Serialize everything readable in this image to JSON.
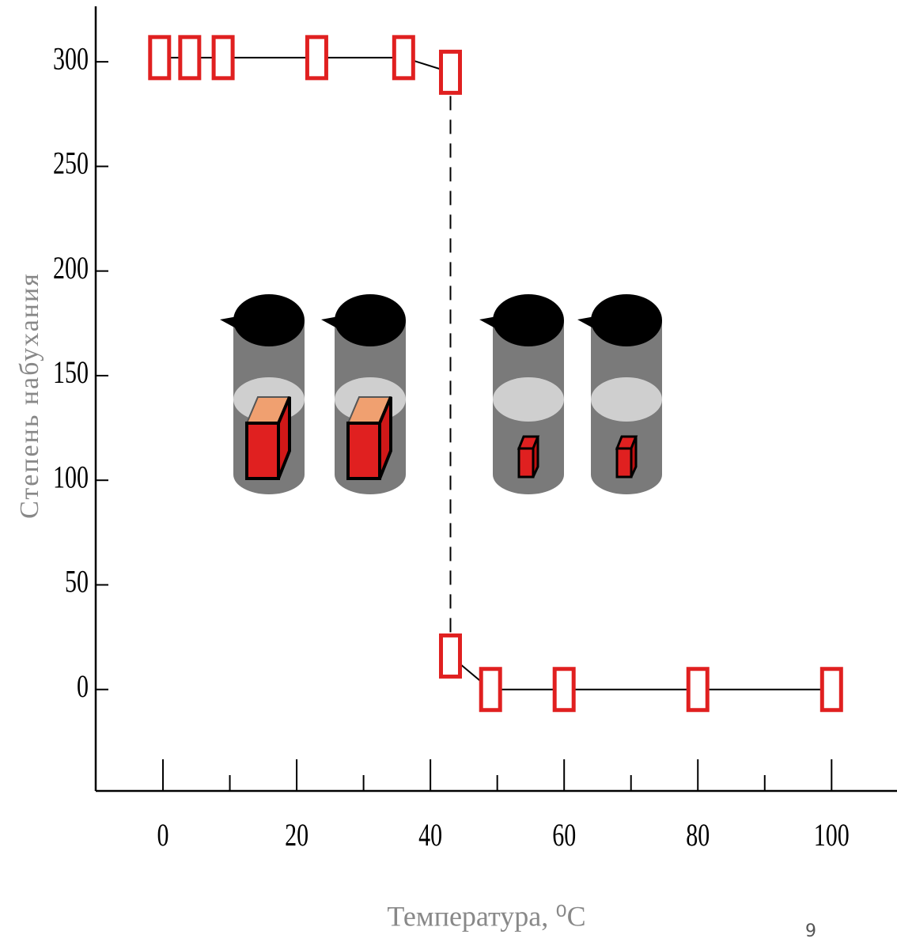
{
  "chart_data": {
    "type": "line",
    "x_label": "Температура, ⁰C",
    "y_label": "Степень набухания",
    "page_number": "9",
    "x": [
      -0.5,
      4,
      9,
      23,
      36,
      43,
      43,
      49,
      60,
      80,
      100
    ],
    "values": [
      302,
      302,
      302,
      302,
      302,
      295,
      16,
      0,
      0,
      0,
      0
    ],
    "color": "#e02020",
    "xlim": [
      -10,
      109.5
    ],
    "xticks": [
      0,
      20,
      40,
      60,
      80,
      100
    ],
    "ylim": [
      -50,
      325
    ],
    "yticks": [
      0,
      50,
      100,
      150,
      200,
      250,
      300
    ]
  }
}
